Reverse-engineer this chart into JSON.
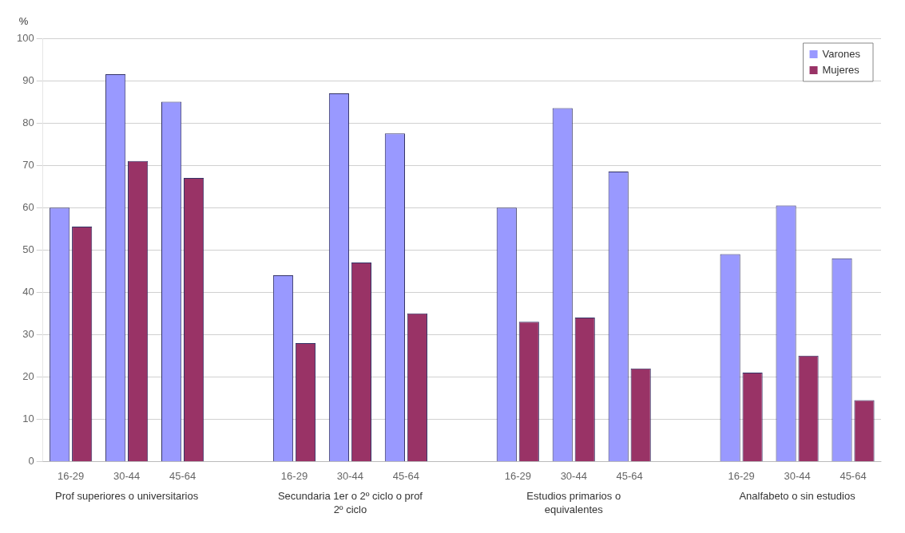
{
  "chart_data": {
    "type": "bar",
    "ylabel": "%",
    "categories": [
      "16-29",
      "30-44",
      "45-64",
      null,
      "16-29",
      "30-44",
      "45-64",
      null,
      "16-29",
      "30-44",
      "45-64",
      null,
      "16-29",
      "30-44",
      "45-64"
    ],
    "series": [
      {
        "name": "Varones",
        "color": "#9999ff",
        "values": [
          60,
          91.5,
          85,
          null,
          44,
          87,
          77.5,
          null,
          60,
          83.5,
          68.5,
          null,
          49,
          60.5,
          48
        ]
      },
      {
        "name": "Mujeres",
        "color": "#993366",
        "values": [
          55.5,
          71,
          67,
          null,
          28,
          47,
          35,
          null,
          33,
          34,
          22,
          null,
          21,
          25,
          14.5
        ]
      }
    ],
    "annotations": [
      "Prof superiores o universitarios",
      "Secundaria 1er o 2º ciclo o prof 2º ciclo",
      "Estudios primarios o equivalentes",
      "Analfabeto o sin estudios"
    ],
    "ylim": [
      0,
      100
    ],
    "yticks": [
      0,
      10,
      20,
      30,
      40,
      50,
      60,
      70,
      80,
      90,
      100
    ],
    "grid": "y",
    "legend": "top right"
  }
}
